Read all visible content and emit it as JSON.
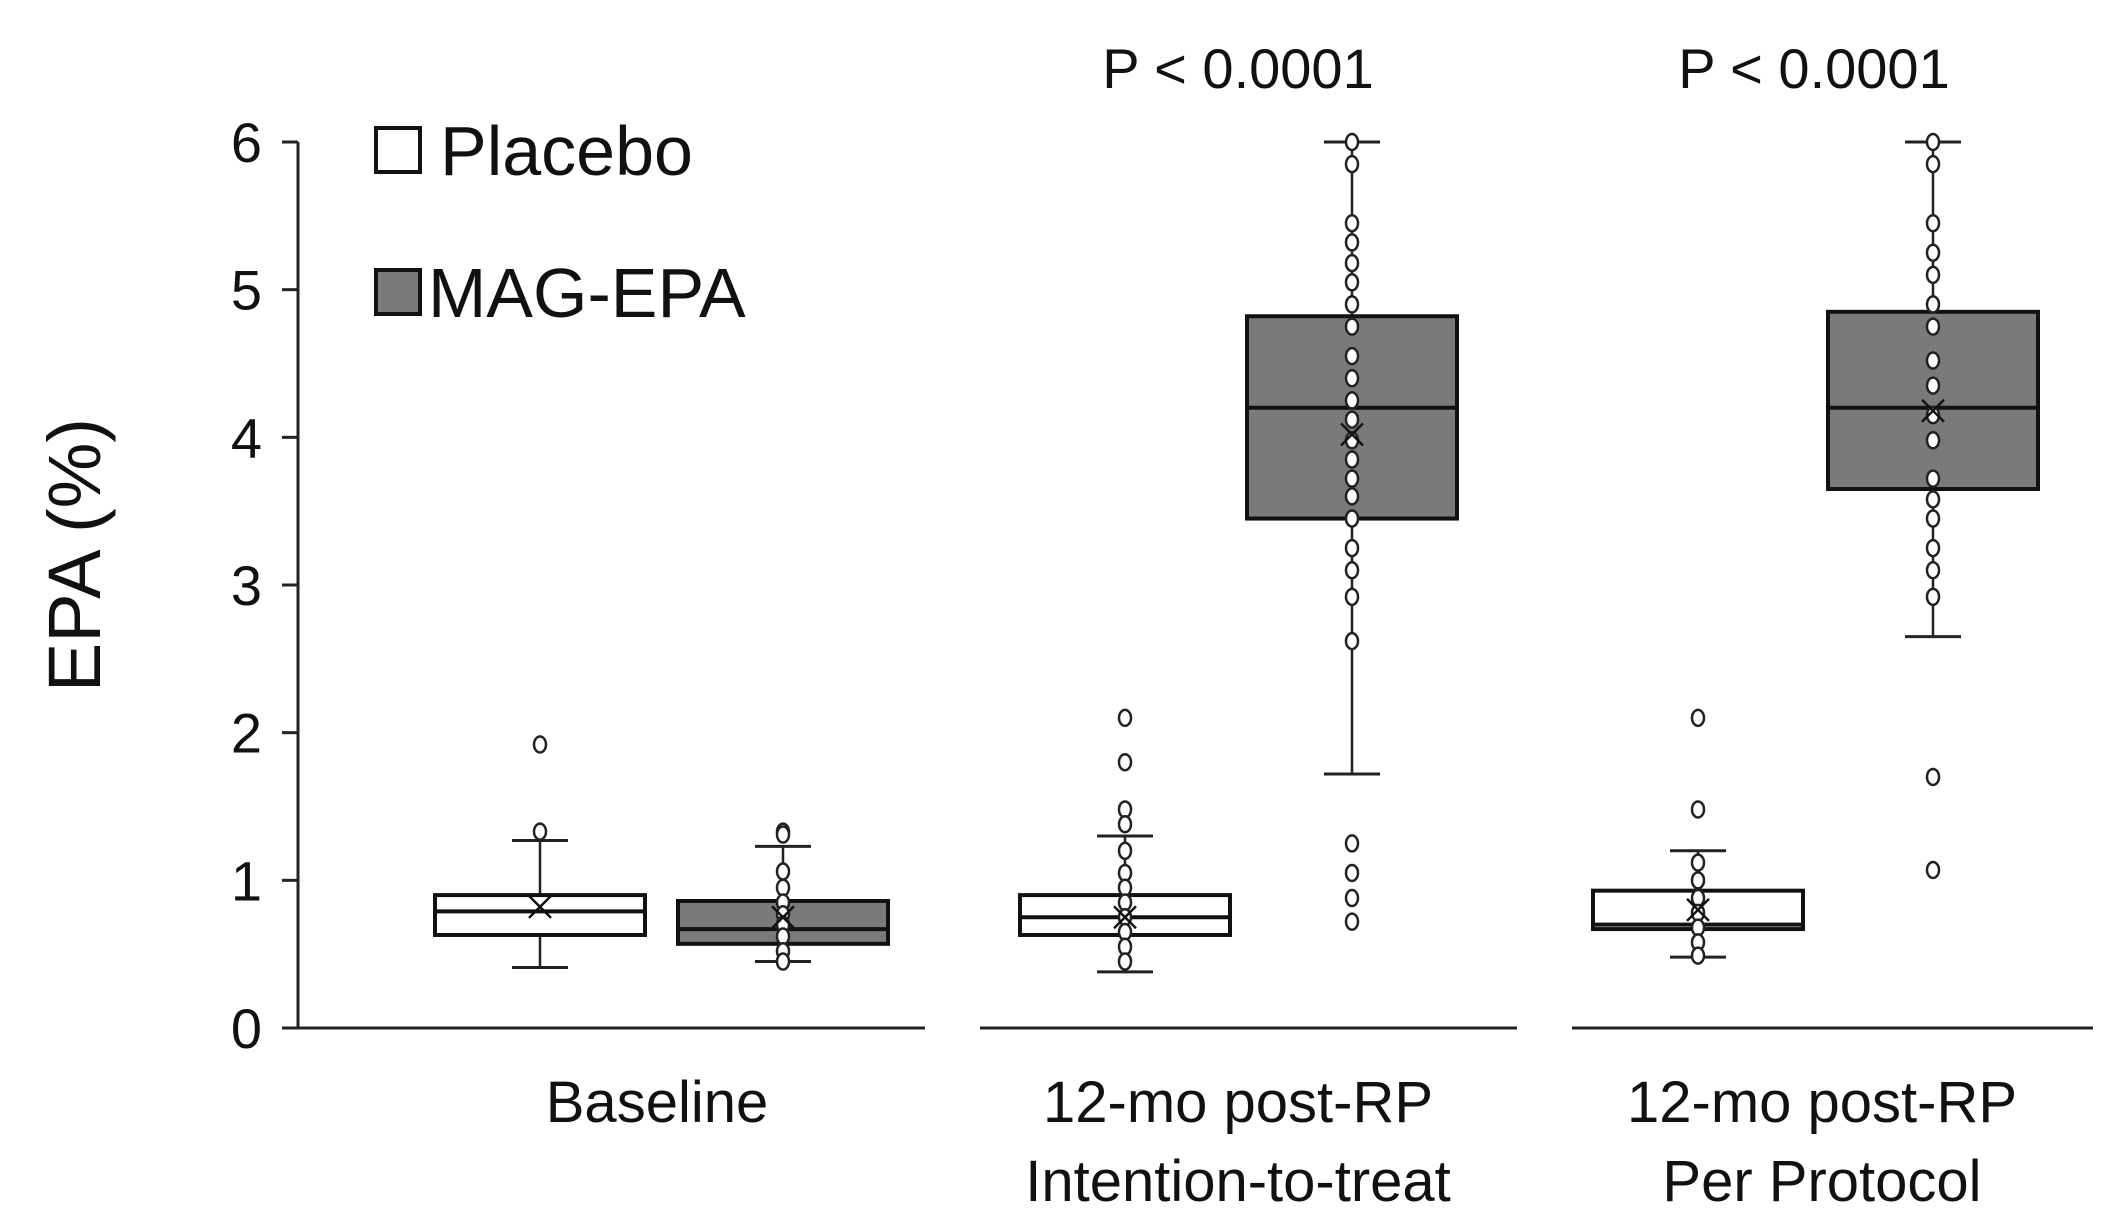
{
  "chart_data": {
    "type": "box",
    "ylabel": "EPA (%)",
    "ylim": [
      0,
      6
    ],
    "yticks": [
      0,
      1,
      2,
      3,
      4,
      5,
      6
    ],
    "legend": {
      "placement": "top-left",
      "entries": [
        {
          "name": "Placebo",
          "color": "#ffffff"
        },
        {
          "name": "MAG-EPA",
          "color": "#7a7a7a"
        }
      ]
    },
    "groups": [
      {
        "label_lines": [
          "Baseline"
        ],
        "p_value": "",
        "boxes": [
          {
            "series": "Placebo",
            "q1": 0.63,
            "median": 0.79,
            "q3": 0.9,
            "whisker_low": 0.41,
            "whisker_high": 1.27,
            "mean": 0.82,
            "points": [
              1.92,
              1.33
            ]
          },
          {
            "series": "MAG-EPA",
            "q1": 0.57,
            "median": 0.67,
            "q3": 0.86,
            "whisker_low": 0.45,
            "whisker_high": 1.23,
            "mean": 0.75,
            "points": [
              1.33,
              1.31,
              1.06,
              0.95,
              0.85,
              0.77,
              0.7,
              0.62,
              0.52,
              0.45
            ]
          }
        ]
      },
      {
        "label_lines": [
          "12-mo post-RP",
          "Intention-to-treat"
        ],
        "p_value": "P < 0.0001",
        "boxes": [
          {
            "series": "Placebo",
            "q1": 0.63,
            "median": 0.75,
            "q3": 0.9,
            "whisker_low": 0.38,
            "whisker_high": 1.3,
            "mean": 0.75,
            "points": [
              2.1,
              1.8,
              1.48,
              1.38,
              1.2,
              1.05,
              0.95,
              0.85,
              0.75,
              0.65,
              0.55,
              0.45
            ]
          },
          {
            "series": "MAG-EPA",
            "q1": 3.45,
            "median": 4.2,
            "q3": 4.82,
            "whisker_low": 1.72,
            "whisker_high": 6.0,
            "mean": 4.02,
            "points": [
              6.0,
              5.85,
              5.45,
              5.32,
              5.18,
              5.05,
              4.9,
              4.75,
              4.55,
              4.4,
              4.25,
              4.12,
              3.98,
              3.85,
              3.72,
              3.6,
              3.45,
              3.25,
              3.1,
              2.92,
              2.62,
              1.25,
              1.05,
              0.88,
              0.72
            ]
          }
        ]
      },
      {
        "label_lines": [
          "12-mo post-RP",
          "Per Protocol"
        ],
        "p_value": "P < 0.0001",
        "boxes": [
          {
            "series": "Placebo",
            "q1": 0.67,
            "median": 0.7,
            "q3": 0.93,
            "whisker_low": 0.48,
            "whisker_high": 1.2,
            "mean": 0.8,
            "points": [
              2.1,
              1.48,
              1.12,
              1.0,
              0.88,
              0.78,
              0.68,
              0.58,
              0.49
            ]
          },
          {
            "series": "MAG-EPA",
            "q1": 3.65,
            "median": 4.2,
            "q3": 4.85,
            "whisker_low": 2.65,
            "whisker_high": 6.0,
            "mean": 4.18,
            "points": [
              6.0,
              5.85,
              5.45,
              5.25,
              5.1,
              4.9,
              4.75,
              4.52,
              4.35,
              4.15,
              3.98,
              3.72,
              3.58,
              3.45,
              3.25,
              3.1,
              2.92,
              1.7,
              1.07
            ]
          }
        ]
      }
    ]
  }
}
